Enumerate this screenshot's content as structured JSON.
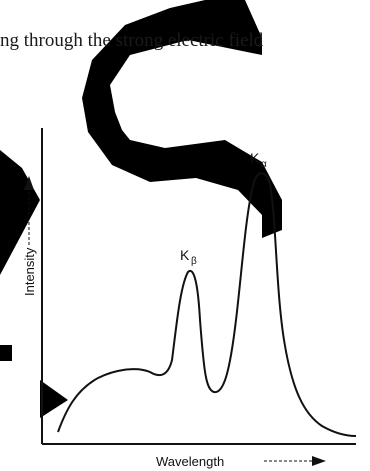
{
  "text": {
    "line1": "ng through the strong electric field"
  },
  "figure": {
    "peak_beta": {
      "main": "K",
      "sub": "β"
    },
    "peak_alpha": {
      "main": "K",
      "sub": "α"
    },
    "ylabel": "Intensity",
    "xlabel": "Wavelength"
  },
  "colors": {
    "watermark": "#000000",
    "curve": "#111111",
    "text": "#111111"
  }
}
